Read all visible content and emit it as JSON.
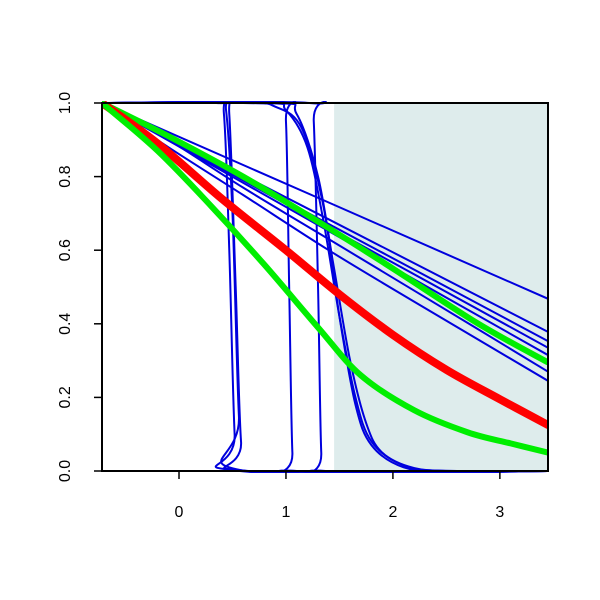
{
  "chart_data": {
    "type": "line",
    "title": "",
    "xlabel": "",
    "ylabel": "",
    "xlim": [
      -0.72,
      3.45
    ],
    "ylim": [
      0,
      1
    ],
    "x_ticks": [
      0,
      1,
      2,
      3
    ],
    "x_tick_labels": [
      "0",
      "1",
      "2",
      "3"
    ],
    "y_ticks": [
      0,
      0.2,
      0.4,
      0.6,
      0.8,
      1
    ],
    "y_tick_labels": [
      "0.0",
      "0.2",
      "0.4",
      "0.6",
      "0.8",
      "1.0"
    ],
    "grid": false,
    "shaded_region": {
      "x_from": 1.45,
      "x_to": 3.45,
      "color": "#deecec"
    },
    "colors": {
      "blue": "#0000dd",
      "red": "#ff0000",
      "green": "#00ee00"
    },
    "series": [
      {
        "color": "blue",
        "width": 2,
        "points": [
          [
            -0.72,
            1.0
          ],
          [
            3.45,
            0.468
          ]
        ]
      },
      {
        "color": "blue",
        "width": 2,
        "points": [
          [
            -0.72,
            1.0
          ],
          [
            3.45,
            0.378
          ]
        ]
      },
      {
        "color": "blue",
        "width": 2,
        "points": [
          [
            -0.72,
            1.0
          ],
          [
            3.45,
            0.353
          ]
        ]
      },
      {
        "color": "blue",
        "width": 2,
        "points": [
          [
            -0.72,
            1.0
          ],
          [
            3.45,
            0.335
          ]
        ]
      },
      {
        "color": "blue",
        "width": 2,
        "points": [
          [
            -0.72,
            1.0
          ],
          [
            3.45,
            0.315
          ]
        ]
      },
      {
        "color": "blue",
        "width": 2,
        "points": [
          [
            -0.72,
            1.0
          ],
          [
            -0.1,
            0.9
          ],
          [
            0.6,
            0.77
          ],
          [
            1.4,
            0.63
          ],
          [
            2.2,
            0.49
          ],
          [
            3.45,
            0.27
          ]
        ]
      },
      {
        "color": "blue",
        "width": 2,
        "points": [
          [
            -0.72,
            1.0
          ],
          [
            -0.1,
            0.88
          ],
          [
            0.6,
            0.75
          ],
          [
            1.4,
            0.6
          ],
          [
            2.2,
            0.46
          ],
          [
            3.45,
            0.245
          ]
        ]
      },
      {
        "color": "blue",
        "width": 2,
        "points": [
          [
            -0.72,
            1.0
          ],
          [
            0.35,
            1.0
          ],
          [
            0.42,
            0.97
          ],
          [
            0.47,
            0.6
          ],
          [
            0.52,
            0.1
          ],
          [
            0.57,
            0.0
          ],
          [
            3.45,
            0.0
          ]
        ]
      },
      {
        "color": "blue",
        "width": 2,
        "points": [
          [
            -0.72,
            1.0
          ],
          [
            0.38,
            1.0
          ],
          [
            0.44,
            0.98
          ],
          [
            0.5,
            0.7
          ],
          [
            0.56,
            0.15
          ],
          [
            0.62,
            0.0
          ],
          [
            3.45,
            0.0
          ]
        ]
      },
      {
        "color": "blue",
        "width": 2,
        "points": [
          [
            -0.72,
            1.0
          ],
          [
            0.42,
            1.0
          ],
          [
            0.47,
            0.97
          ],
          [
            0.53,
            0.5
          ],
          [
            0.58,
            0.08
          ],
          [
            0.65,
            0.0
          ],
          [
            3.45,
            0.0
          ]
        ]
      },
      {
        "color": "blue",
        "width": 2,
        "points": [
          [
            -0.72,
            1.0
          ],
          [
            0.95,
            1.0
          ],
          [
            1.0,
            0.95
          ],
          [
            1.03,
            0.5
          ],
          [
            1.06,
            0.05
          ],
          [
            1.1,
            0.0
          ],
          [
            3.45,
            0.0
          ]
        ]
      },
      {
        "color": "blue",
        "width": 2,
        "points": [
          [
            -0.72,
            1.0
          ],
          [
            1.22,
            1.0
          ],
          [
            1.26,
            0.95
          ],
          [
            1.3,
            0.5
          ],
          [
            1.33,
            0.05
          ],
          [
            1.37,
            0.0
          ],
          [
            3.45,
            0.0
          ]
        ]
      },
      {
        "color": "blue",
        "width": 2,
        "points": [
          [
            -0.72,
            1.0
          ],
          [
            0.6,
            1.0
          ],
          [
            0.9,
            0.99
          ],
          [
            1.15,
            0.93
          ],
          [
            1.35,
            0.72
          ],
          [
            1.5,
            0.42
          ],
          [
            1.65,
            0.18
          ],
          [
            1.8,
            0.07
          ],
          [
            2.1,
            0.01
          ],
          [
            2.5,
            0.0
          ],
          [
            3.45,
            0.0
          ]
        ]
      },
      {
        "color": "blue",
        "width": 2,
        "points": [
          [
            -0.72,
            1.0
          ],
          [
            0.8,
            1.0
          ],
          [
            1.0,
            0.98
          ],
          [
            1.2,
            0.88
          ],
          [
            1.35,
            0.68
          ],
          [
            1.5,
            0.42
          ],
          [
            1.65,
            0.2
          ],
          [
            1.8,
            0.08
          ],
          [
            2.1,
            0.015
          ],
          [
            2.5,
            0.0
          ],
          [
            3.45,
            0.0
          ]
        ]
      },
      {
        "color": "blue",
        "width": 2,
        "points": [
          [
            -0.72,
            1.0
          ],
          [
            0.9,
            1.0
          ],
          [
            1.1,
            0.97
          ],
          [
            1.3,
            0.8
          ],
          [
            1.45,
            0.55
          ],
          [
            1.6,
            0.3
          ],
          [
            1.75,
            0.13
          ],
          [
            1.9,
            0.05
          ],
          [
            2.2,
            0.008
          ],
          [
            2.6,
            0.0
          ],
          [
            3.45,
            0.0
          ]
        ]
      },
      {
        "color": "green",
        "width": 6,
        "points": [
          [
            -0.72,
            1.0
          ],
          [
            -0.1,
            0.91
          ],
          [
            0.6,
            0.8
          ],
          [
            1.4,
            0.66
          ],
          [
            2.0,
            0.55
          ],
          [
            2.8,
            0.4
          ],
          [
            3.45,
            0.295
          ]
        ]
      },
      {
        "color": "red",
        "width": 8,
        "points": [
          [
            -0.72,
            1.0
          ],
          [
            -0.2,
            0.89
          ],
          [
            0.4,
            0.74
          ],
          [
            1.0,
            0.6
          ],
          [
            1.5,
            0.48
          ],
          [
            2.0,
            0.37
          ],
          [
            2.5,
            0.275
          ],
          [
            3.0,
            0.195
          ],
          [
            3.45,
            0.125
          ]
        ]
      },
      {
        "color": "green",
        "width": 6,
        "points": [
          [
            -0.72,
            1.0
          ],
          [
            -0.2,
            0.87
          ],
          [
            0.3,
            0.72
          ],
          [
            0.8,
            0.56
          ],
          [
            1.3,
            0.39
          ],
          [
            1.7,
            0.26
          ],
          [
            2.2,
            0.165
          ],
          [
            2.7,
            0.105
          ],
          [
            3.1,
            0.075
          ],
          [
            3.45,
            0.05
          ]
        ]
      }
    ]
  }
}
